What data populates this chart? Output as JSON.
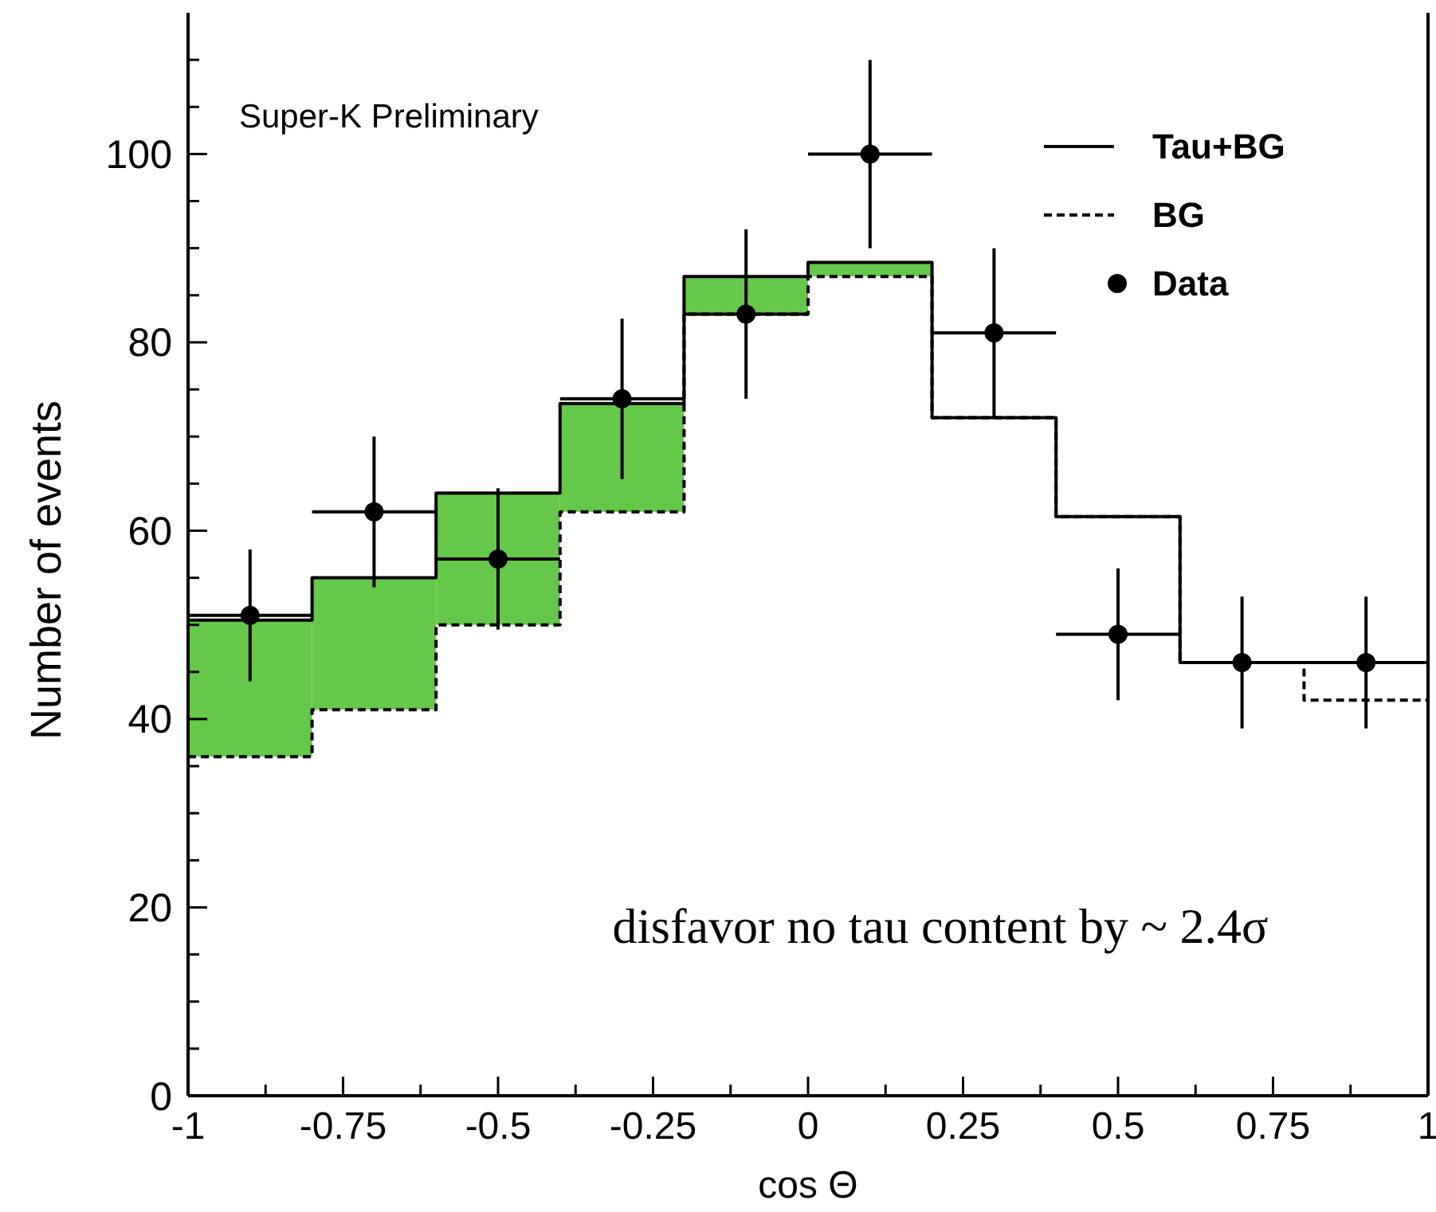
{
  "chart_data": {
    "type": "step",
    "xlabel": "cos Θ",
    "ylabel": "Number of events",
    "xlim": [
      -1,
      1
    ],
    "ylim": [
      0,
      115
    ],
    "xticks": [
      -1,
      {
        "value": -0.875,
        "label": null
      },
      -0.75,
      {
        "value": -0.625,
        "label": null
      },
      -0.5,
      {
        "value": -0.375,
        "label": null
      },
      -0.25,
      {
        "value": -0.125,
        "label": null
      },
      0,
      {
        "value": 0.125,
        "label": null
      },
      0.25,
      {
        "value": 0.375,
        "label": null
      },
      0.5,
      {
        "value": 0.625,
        "label": null
      },
      0.75,
      {
        "value": 0.875,
        "label": null
      },
      1
    ],
    "yticks": [
      0,
      {
        "value": 5,
        "label": null
      },
      {
        "value": 10,
        "label": null
      },
      {
        "value": 15,
        "label": null
      },
      20,
      {
        "value": 25,
        "label": null
      },
      {
        "value": 30,
        "label": null
      },
      {
        "value": 35,
        "label": null
      },
      40,
      {
        "value": 45,
        "label": null
      },
      {
        "value": 50,
        "label": null
      },
      {
        "value": 55,
        "label": null
      },
      60,
      {
        "value": 65,
        "label": null
      },
      {
        "value": 70,
        "label": null
      },
      {
        "value": 75,
        "label": null
      },
      80,
      {
        "value": 85,
        "label": null
      },
      {
        "value": 90,
        "label": null
      },
      {
        "value": 95,
        "label": null
      },
      100,
      {
        "value": 105,
        "label": null
      },
      {
        "value": 110,
        "label": null
      }
    ],
    "grid": false,
    "legend": "top right",
    "annotations": [
      "Super-K Preliminary",
      "disfavor no tau content by ~ 2.4σ"
    ],
    "series": [
      {
        "type": "bar",
        "color": "#66c84a",
        "x": [
          -0.9,
          -0.7,
          -0.5,
          -0.3,
          -0.1,
          0.1
        ],
        "base": [
          36,
          41,
          50,
          62,
          83,
          87
        ],
        "values": [
          14.5,
          14,
          14,
          11.5,
          4,
          1.5
        ]
      },
      {
        "name": "Tau+BG",
        "color": "#000000",
        "line_style": "solid",
        "x": [
          -1,
          -0.8,
          -0.6,
          -0.4,
          -0.2,
          0,
          0.2,
          0.4,
          0.6,
          0.8,
          1
        ],
        "values": [
          50.5,
          55,
          64,
          73.5,
          87,
          88.5,
          72,
          61.5,
          46,
          46,
          46
        ]
      },
      {
        "name": "BG",
        "type": "step",
        "color": "#000000",
        "line_style": "dashed",
        "x": [
          -1,
          -0.8,
          -0.6,
          -0.4,
          -0.2,
          0,
          0.2,
          0.4,
          0.6,
          0.8,
          1
        ],
        "values": [
          36,
          41,
          50,
          62,
          83,
          87,
          72,
          61.5,
          46,
          42,
          42
        ]
      },
      {
        "name": "Data",
        "type": "scatter",
        "color": "#000000",
        "marker": "circle",
        "x": [
          -0.9,
          -0.7,
          -0.5,
          -0.3,
          -0.1,
          0.1,
          0.3,
          0.5,
          0.7,
          0.9
        ],
        "values": [
          51,
          62,
          57,
          74,
          83,
          100,
          81,
          49,
          46,
          46
        ],
        "errors": [
          7,
          8,
          7.5,
          8.5,
          9,
          10,
          9,
          7,
          7,
          7
        ],
        "xerrors": [
          0.1,
          0.1,
          0.1,
          0.1,
          0.1,
          0.1,
          0.1,
          0.1,
          0.1,
          0.1
        ]
      }
    ]
  }
}
